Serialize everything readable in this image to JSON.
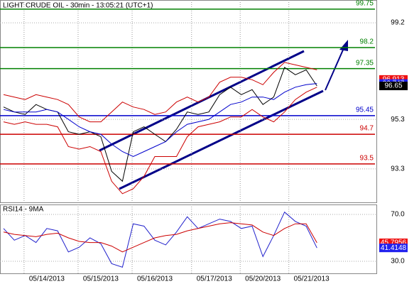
{
  "chart_data": [
    {
      "type": "line",
      "title": "LIGHT CRUDE OIL - 30min - 13:05:21 (UTC+1)",
      "x": [
        0,
        1,
        2,
        3,
        4,
        5,
        6,
        7,
        8,
        9,
        10,
        11,
        12,
        13,
        14,
        15,
        16,
        17,
        18,
        19,
        20,
        21,
        22,
        23,
        24,
        25,
        26,
        27,
        28,
        29
      ],
      "xlim": [
        0,
        34.5
      ],
      "ylim": [
        91.95,
        100.12
      ],
      "yticks": [
        93.3,
        95.3,
        99.2
      ],
      "series": [
        {
          "color": "#000000",
          "values": [
            95.8,
            95.6,
            95.5,
            95.9,
            95.7,
            95.6,
            94.8,
            94.7,
            94.8,
            94.6,
            93.2,
            92.8,
            94.8,
            95.0,
            94.7,
            94.4,
            94.9,
            95.6,
            95.5,
            95.6,
            96.3,
            96.6,
            96.3,
            96.5,
            95.9,
            96.2,
            97.4,
            97.1,
            97.3,
            96.65
          ]
        },
        {
          "color": "#cc0000",
          "values": [
            96.3,
            96.2,
            96.1,
            96.3,
            96.2,
            96.1,
            95.9,
            95.4,
            95.2,
            95.2,
            95.6,
            96.0,
            95.8,
            95.7,
            95.5,
            95.6,
            96.0,
            96.2,
            96.0,
            96.2,
            96.8,
            97.0,
            97.0,
            96.9,
            96.7,
            97.2,
            97.6,
            97.5,
            97.4,
            97.3
          ]
        },
        {
          "color": "#cc0000",
          "values": [
            95.2,
            95.1,
            95.2,
            95.1,
            95.1,
            95.0,
            94.2,
            94.1,
            94.2,
            94.0,
            92.8,
            92.3,
            92.5,
            93.0,
            93.8,
            93.8,
            93.8,
            94.6,
            95.0,
            95.1,
            95.2,
            95.4,
            95.4,
            95.7,
            95.4,
            95.2,
            95.6,
            96.1,
            96.4,
            96.6
          ]
        },
        {
          "color": "#0000cc",
          "values": [
            95.7,
            95.6,
            95.6,
            95.6,
            95.7,
            95.6,
            95.3,
            95.0,
            94.8,
            94.7,
            94.3,
            94.0,
            93.8,
            94.0,
            94.2,
            94.4,
            94.8,
            95.1,
            95.2,
            95.3,
            95.6,
            95.9,
            96.0,
            96.2,
            96.2,
            96.1,
            96.4,
            96.6,
            96.7,
            96.75
          ]
        }
      ],
      "levels": [
        {
          "value": 99.75,
          "color": "#008000"
        },
        {
          "value": 98.2,
          "color": "#008000"
        },
        {
          "value": 97.35,
          "color": "#008000"
        },
        {
          "value": 95.45,
          "color": "#0000cc"
        },
        {
          "value": 94.7,
          "color": "#cc0000"
        },
        {
          "value": 93.5,
          "color": "#cc0000"
        }
      ],
      "markers": [
        {
          "value": 96.913,
          "color": "#ee1111"
        },
        {
          "value": 96.747,
          "color": "#2222ee"
        },
        {
          "value": 96.65,
          "color": "#000000"
        }
      ]
    },
    {
      "type": "line",
      "title": "RSI14 - 9MA",
      "x": [
        0,
        1,
        2,
        3,
        4,
        5,
        6,
        7,
        8,
        9,
        10,
        11,
        12,
        13,
        14,
        15,
        16,
        17,
        18,
        19,
        20,
        21,
        22,
        23,
        24,
        25,
        26,
        27,
        28,
        29
      ],
      "xlim": [
        0,
        34.5
      ],
      "ylim": [
        19.7,
        78.5
      ],
      "yticks": [
        {
          "value": 70,
          "label": "70.0"
        },
        {
          "value": 30,
          "label": "30.0"
        }
      ],
      "xticks": [
        {
          "value": 4,
          "label": "05/14/2013"
        },
        {
          "value": 9,
          "label": "05/15/2013"
        },
        {
          "value": 14,
          "label": "05/16/2013"
        },
        {
          "value": 19.5,
          "label": "05/17/2013"
        },
        {
          "value": 24,
          "label": "05/20/2013"
        },
        {
          "value": 28.5,
          "label": "05/21/2013"
        }
      ],
      "series": [
        {
          "color": "#2222cc",
          "values": [
            58,
            48,
            52,
            46,
            58,
            56,
            38,
            42,
            50,
            45,
            28,
            25,
            62,
            60,
            48,
            44,
            55,
            68,
            58,
            62,
            66,
            64,
            58,
            60,
            34,
            52,
            72,
            64,
            60,
            41.4
          ]
        },
        {
          "color": "#cc0000",
          "values": [
            55,
            53,
            52,
            51,
            53,
            54,
            50,
            47,
            46,
            46,
            43,
            38,
            42,
            46,
            50,
            52,
            53,
            56,
            58,
            60,
            62,
            63,
            62,
            61,
            55,
            52,
            58,
            62,
            62,
            45.8
          ]
        }
      ],
      "markers": [
        {
          "value": 45.7956,
          "color": "#ee1111"
        },
        {
          "value": 41.4148,
          "color": "#2222ee"
        }
      ]
    }
  ]
}
